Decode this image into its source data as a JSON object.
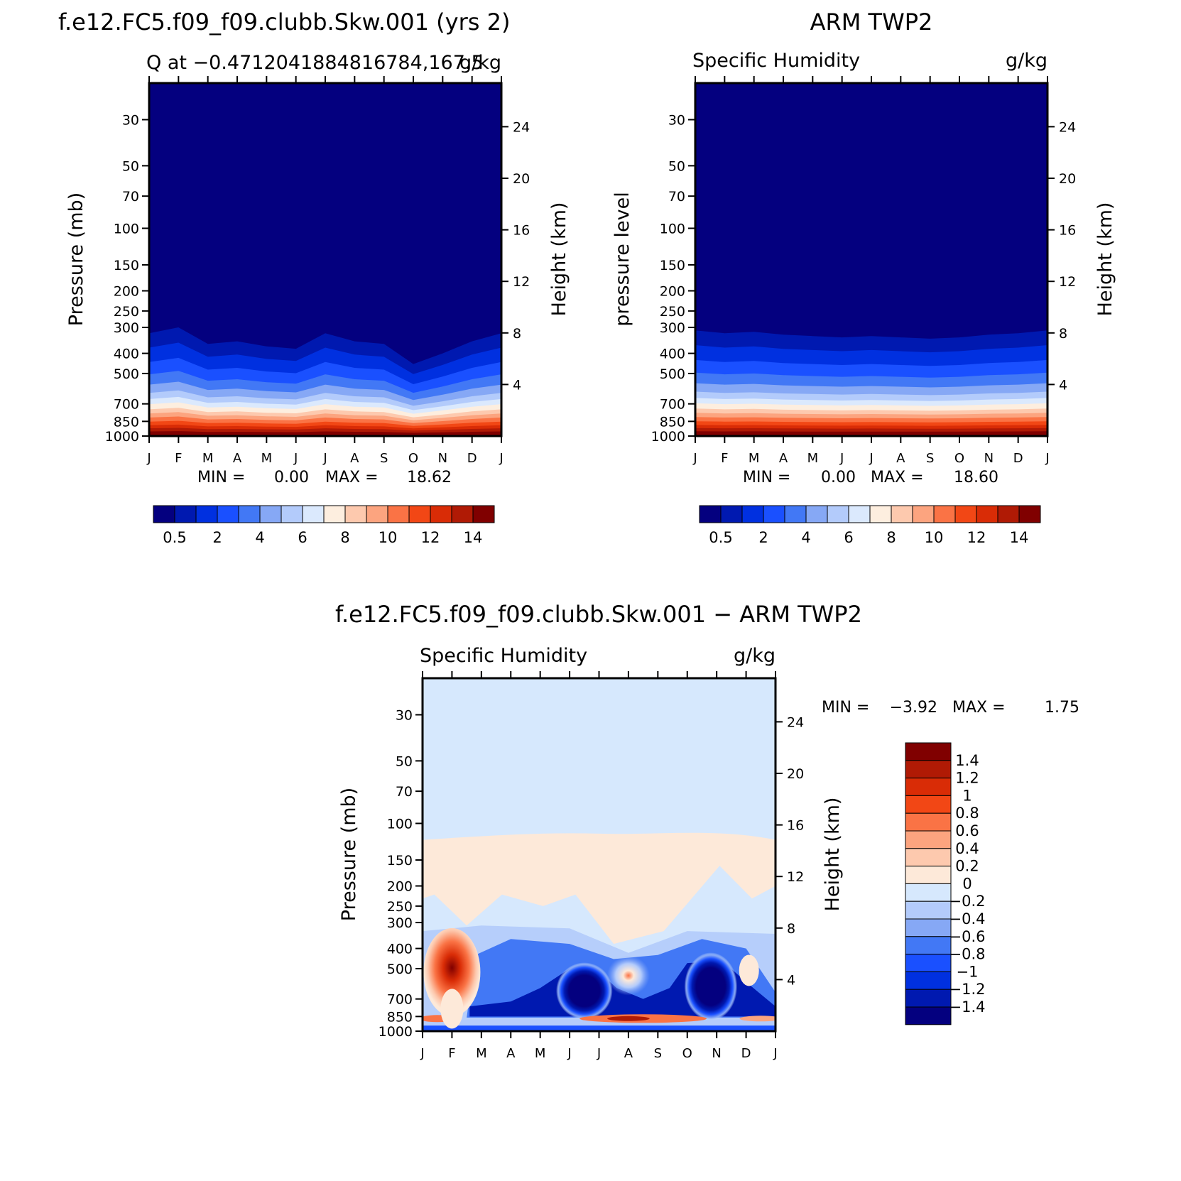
{
  "panels": [
    {
      "id": "model",
      "title": "f.e12.FC5.f09_f09.clubb.Skw.001 (yrs 2)",
      "subtitle_left": "Q at −0.4712041884816784,167.5",
      "subtitle_right": "g/kg",
      "ylabel": "Pressure (mb)",
      "y2label": "Height (km)",
      "min_label": "MIN =",
      "min_value": "0.00",
      "max_label": "MAX =",
      "max_value": "18.62"
    },
    {
      "id": "obs",
      "title": "ARM TWP2",
      "subtitle_left": "Specific Humidity",
      "subtitle_right": "g/kg",
      "ylabel": "pressure level",
      "y2label": "Height (km)",
      "min_label": "MIN =",
      "min_value": "0.00",
      "max_label": "MAX =",
      "max_value": "18.60"
    },
    {
      "id": "diff",
      "title": "f.e12.FC5.f09_f09.clubb.Skw.001 − ARM TWP2",
      "subtitle_left": "Specific Humidity",
      "subtitle_right": "g/kg",
      "ylabel": "Pressure (mb)",
      "y2label": "Height (km)",
      "min_label": "MIN =",
      "min_value": "−3.92",
      "max_label": "MAX =",
      "max_value": "1.75"
    }
  ],
  "chart_data": [
    {
      "type": "heatmap",
      "title": "f.e12.FC5.f09_f09.clubb.Skw.001 (yrs 2)",
      "subtitle": "Q at −0.4712041884816784,167.5",
      "units": "g/kg",
      "xlabel": "",
      "ylabel": "Pressure (mb)",
      "y2label": "Height (km)",
      "x_ticks": [
        "J",
        "F",
        "M",
        "A",
        "M",
        "J",
        "J",
        "A",
        "S",
        "O",
        "N",
        "D",
        "J"
      ],
      "y_ticks": [
        30,
        50,
        70,
        100,
        150,
        200,
        250,
        300,
        400,
        500,
        700,
        850,
        1000
      ],
      "y2_ticks": [
        24,
        20,
        16,
        12,
        8,
        4
      ],
      "ylim": [
        1000,
        20
      ],
      "contour_levels": [
        0.5,
        1,
        2,
        3,
        4,
        5,
        6,
        7,
        8,
        9,
        10,
        11,
        12,
        13,
        14
      ],
      "colorbar_labels": [
        "0.5",
        "2",
        "4",
        "6",
        "8",
        "10",
        "12",
        "14"
      ],
      "surface_value_g_kg": 18.62,
      "moist_top_pressure_mb_by_month": [
        320,
        300,
        360,
        350,
        370,
        380,
        320,
        350,
        360,
        450,
        400,
        350,
        320
      ],
      "min": 0.0,
      "max": 18.62
    },
    {
      "type": "heatmap",
      "title": "ARM TWP2",
      "subtitle": "Specific Humidity",
      "units": "g/kg",
      "xlabel": "",
      "ylabel": "pressure level",
      "y2label": "Height (km)",
      "x_ticks": [
        "J",
        "F",
        "M",
        "A",
        "M",
        "J",
        "J",
        "A",
        "S",
        "O",
        "N",
        "D",
        "J"
      ],
      "y_ticks": [
        30,
        50,
        70,
        100,
        150,
        200,
        250,
        300,
        400,
        500,
        700,
        850,
        1000
      ],
      "y2_ticks": [
        24,
        20,
        16,
        12,
        8,
        4
      ],
      "ylim": [
        1000,
        20
      ],
      "contour_levels": [
        0.5,
        1,
        2,
        3,
        4,
        5,
        6,
        7,
        8,
        9,
        10,
        11,
        12,
        13,
        14
      ],
      "colorbar_labels": [
        "0.5",
        "2",
        "4",
        "6",
        "8",
        "10",
        "12",
        "14"
      ],
      "surface_value_g_kg": 18.6,
      "moist_top_pressure_mb_by_month": [
        310,
        320,
        315,
        325,
        330,
        335,
        330,
        335,
        340,
        335,
        325,
        320,
        310
      ],
      "min": 0.0,
      "max": 18.6
    },
    {
      "type": "heatmap",
      "title": "f.e12.FC5.f09_f09.clubb.Skw.001 − ARM TWP2",
      "subtitle": "Specific Humidity",
      "units": "g/kg",
      "xlabel": "",
      "ylabel": "Pressure (mb)",
      "y2label": "Height (km)",
      "x_ticks": [
        "J",
        "F",
        "M",
        "A",
        "M",
        "J",
        "J",
        "A",
        "S",
        "O",
        "N",
        "D",
        "J"
      ],
      "y_ticks": [
        30,
        50,
        70,
        100,
        150,
        200,
        250,
        300,
        400,
        500,
        700,
        850,
        1000
      ],
      "y2_ticks": [
        24,
        20,
        16,
        12,
        8,
        4
      ],
      "ylim": [
        1000,
        20
      ],
      "contour_levels": [
        -1.4,
        -1.2,
        -1,
        -0.8,
        -0.6,
        -0.4,
        -0.2,
        0,
        0.2,
        0.4,
        0.6,
        0.8,
        1,
        1.2,
        1.4
      ],
      "colorbar_labels": [
        "1.4",
        "1.2",
        "1",
        "0.8",
        "0.6",
        "0.4",
        "0.2",
        "0",
        "−0.2",
        "−0.4",
        "−0.6",
        "−0.8",
        "−1",
        "−1.2",
        "−1.4"
      ],
      "features": [
        {
          "name": "moist anomaly",
          "month": "F",
          "pressure_mb": 520,
          "value": 1.75
        },
        {
          "name": "dry anomaly",
          "month": "O",
          "pressure_mb": 600,
          "value": -1.4
        },
        {
          "name": "moist band",
          "month": "A",
          "pressure_mb": 870,
          "value": 1.0
        }
      ],
      "min": -3.92,
      "max": 1.75
    }
  ],
  "colors": {
    "seq": [
      "#04007f",
      "#0019b0",
      "#0030e0",
      "#1a50ff",
      "#4278f5",
      "#86a8f5",
      "#b3cbfb",
      "#dbe9fd",
      "#fdeedf",
      "#fdc9ae",
      "#fca47f",
      "#fa7345",
      "#f24715",
      "#d92c06",
      "#b01a05",
      "#800000"
    ],
    "div": [
      "#04007f",
      "#0019b0",
      "#0030e0",
      "#1a50ff",
      "#4278f5",
      "#86a8f5",
      "#b3cbfb",
      "#d6e8fd",
      "#fde9d9",
      "#fdc9ae",
      "#fca47f",
      "#fa7345",
      "#f24715",
      "#d92c06",
      "#b01a05",
      "#800000"
    ]
  }
}
